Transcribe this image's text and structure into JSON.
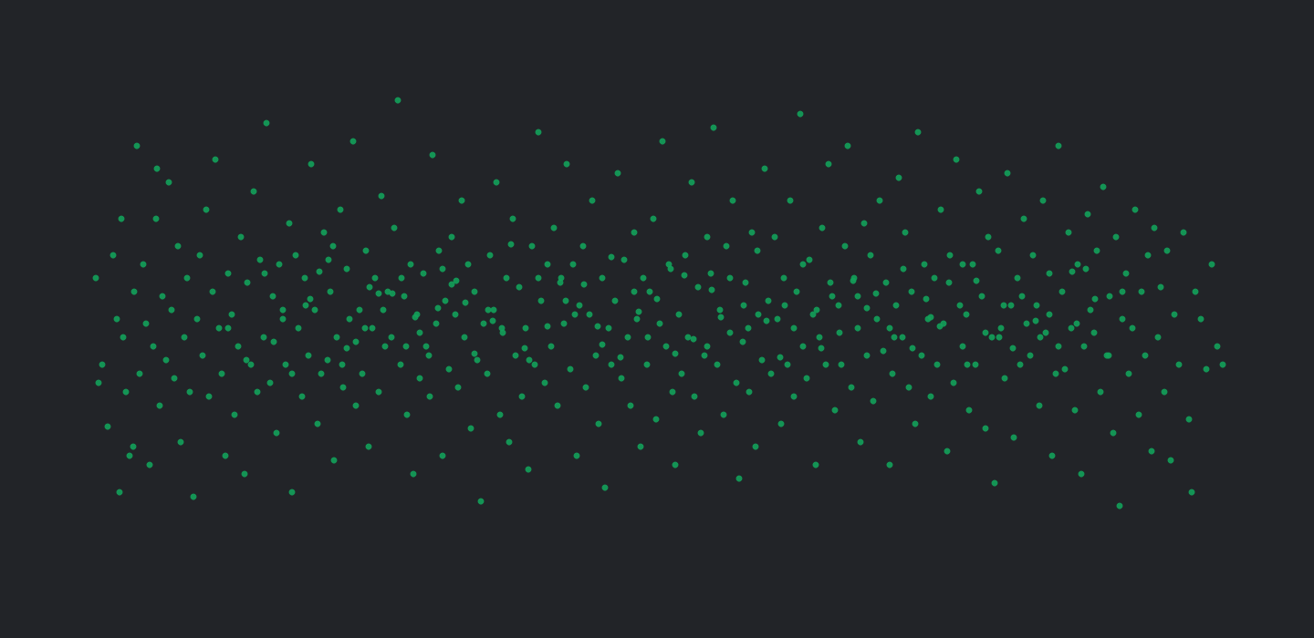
{
  "chart_data": {
    "type": "scatter",
    "color": "#13a15a",
    "marker": "circle",
    "grid": false,
    "tick_labels": false,
    "xlim": [
      0,
      1440
    ],
    "ylim": [
      0,
      700
    ],
    "x": [
      105,
      112,
      118,
      124,
      128,
      131,
      135,
      138,
      142,
      147,
      150,
      153,
      157,
      160,
      164,
      168,
      171,
      175,
      178,
      182,
      185,
      188,
      191,
      195,
      198,
      202,
      205,
      208,
      212,
      216,
      219,
      222,
      226,
      229,
      233,
      236,
      240,
      243,
      247,
      250,
      254,
      257,
      261,
      264,
      268,
      271,
      275,
      278,
      282,
      285,
      289,
      292,
      296,
      299,
      303,
      306,
      310,
      313,
      317,
      320,
      324,
      327,
      331,
      334,
      338,
      341,
      345,
      348,
      352,
      355,
      359,
      362,
      366,
      369,
      373,
      376,
      380,
      383,
      387,
      390,
      394,
      397,
      401,
      404,
      408,
      411,
      415,
      418,
      422,
      425,
      429,
      432,
      436,
      439,
      443,
      446,
      450,
      453,
      457,
      460,
      464,
      467,
      471,
      474,
      478,
      481,
      485,
      488,
      492,
      495,
      499,
      502,
      506,
      509,
      513,
      516,
      520,
      523,
      527,
      530,
      534,
      537,
      541,
      544,
      548,
      551,
      555,
      558,
      562,
      565,
      569,
      572,
      576,
      579,
      583,
      586,
      590,
      593,
      597,
      600,
      604,
      607,
      611,
      614,
      618,
      621,
      625,
      628,
      632,
      635,
      639,
      642,
      646,
      649,
      653,
      656,
      660,
      663,
      667,
      670,
      674,
      677,
      681,
      684,
      688,
      691,
      695,
      698,
      702,
      705,
      709,
      712,
      716,
      719,
      723,
      726,
      730,
      733,
      737,
      740,
      744,
      747,
      751,
      754,
      758,
      761,
      765,
      768,
      772,
      775,
      779,
      782,
      786,
      789,
      793,
      796,
      800,
      803,
      807,
      810,
      814,
      817,
      821,
      824,
      828,
      831,
      835,
      838,
      842,
      845,
      849,
      852,
      856,
      859,
      863,
      866,
      870,
      873,
      877,
      880,
      884,
      887,
      891,
      894,
      898,
      901,
      905,
      908,
      912,
      915,
      919,
      922,
      926,
      929,
      933,
      936,
      940,
      943,
      947,
      950,
      954,
      957,
      961,
      964,
      968,
      971,
      975,
      978,
      982,
      985,
      989,
      992,
      996,
      999,
      1003,
      1006,
      1010,
      1013,
      1017,
      1020,
      1024,
      1027,
      1031,
      1034,
      1038,
      1041,
      1045,
      1048,
      1052,
      1055,
      1059,
      1062,
      1066,
      1069,
      1073,
      1076,
      1080,
      1083,
      1087,
      1090,
      1094,
      1097,
      1101,
      1104,
      1108,
      1111,
      1115,
      1118,
      1122,
      1125,
      1129,
      1132,
      1136,
      1139,
      1143,
      1146,
      1150,
      1153,
      1157,
      1160,
      1164,
      1167,
      1171,
      1174,
      1178,
      1181,
      1185,
      1188,
      1192,
      1195,
      1199,
      1202,
      1206,
      1209,
      1213,
      1216,
      1220,
      1223,
      1227,
      1230,
      1234,
      1237,
      1241,
      1244,
      1248,
      1251,
      1255,
      1258,
      1262,
      1265,
      1269,
      1272,
      1276,
      1279,
      1283,
      1287,
      1292,
      1297,
      1303,
      1310,
      1316,
      1322,
      1328,
      1334,
      1340,
      108,
      133,
      146,
      172,
      1306,
      300,
      340,
      380,
      420,
      460,
      500,
      540,
      580,
      620,
      660,
      700,
      740,
      780,
      820,
      860,
      900,
      940,
      980,
      1020,
      1060,
      1100,
      1140,
      1180,
      320,
      360,
      400,
      440,
      480,
      520,
      560,
      600,
      640,
      680,
      720,
      760,
      800,
      840,
      880,
      920,
      960,
      1000,
      1040,
      1080,
      1120,
      1160,
      1200,
      250,
      270,
      290,
      310,
      350,
      390,
      430,
      470,
      510,
      550,
      590,
      630,
      670,
      710,
      750,
      790,
      830,
      870,
      910,
      950,
      990,
      1030,
      1070,
      1110,
      1150,
      1190,
      1230,
      335,
      375,
      415,
      455,
      495,
      535,
      575,
      615,
      655,
      695,
      735,
      775,
      815,
      855,
      895,
      935,
      975,
      1015,
      1055,
      1095,
      1135,
      1175,
      1215,
      365,
      405,
      445,
      485
    ],
    "values": [
      395,
      300,
      232,
      420,
      350,
      160,
      330,
      270,
      200,
      380,
      540,
      290,
      410,
      345,
      190,
      320,
      460,
      255,
      375,
      305,
      500,
      360,
      285,
      430,
      215,
      330,
      395,
      270,
      155,
      350,
      420,
      310,
      470,
      265,
      380,
      525,
      340,
      290,
      200,
      400,
      355,
      245,
      320,
      440,
      180,
      390,
      300,
      490,
      270,
      415,
      330,
      565,
      280,
      375,
      225,
      410,
      350,
      300,
      455,
      160,
      420,
      340,
      265,
      395,
      310,
      520,
      360,
      235,
      290,
      445,
      305,
      380,
      195,
      330,
      470,
      275,
      405,
      350,
      545,
      255,
      360,
      290,
      425,
      210,
      340,
      395,
      270,
      485,
      320,
      380,
      330,
      450,
      590,
      300,
      375,
      245,
      410,
      180,
      355,
      285,
      400,
      320,
      265,
      530,
      345,
      425,
      200,
      370,
      295,
      440,
      355,
      275,
      480,
      330,
      410,
      230,
      380,
      305,
      150,
      345,
      290,
      420,
      360,
      500,
      245,
      335,
      395,
      215,
      460,
      310,
      385,
      265,
      340,
      185,
      430,
      300,
      555,
      370,
      280,
      410,
      320,
      450,
      255,
      390,
      345,
      520,
      295,
      410,
      200,
      365,
      430,
      275,
      355,
      480,
      310,
      235,
      395,
      165,
      340,
      300,
      370,
      510,
      285,
      415,
      330,
      255,
      445,
      350,
      210,
      395,
      300,
      380,
      460,
      240,
      345,
      545,
      320,
      410,
      270,
      190,
      355,
      290,
      420,
      330,
      500,
      265,
      385,
      225,
      310,
      440,
      400,
      560,
      300,
      360,
      245,
      430,
      335,
      480,
      280,
      175,
      325,
      390,
      270,
      445,
      210,
      355,
      305,
      515,
      370,
      290,
      440,
      350,
      235,
      395,
      300,
      480,
      265,
      380,
      575,
      320,
      285,
      415,
      355,
      190,
      330,
      450,
      300,
      520,
      375,
      250,
      365,
      300,
      430,
      540,
      275,
      395,
      340,
      215,
      455,
      310,
      420,
      260,
      350,
      480,
      315,
      390,
      190,
      290,
      365,
      505,
      330,
      445,
      275,
      380,
      235,
      555,
      310,
      410,
      350,
      265,
      395,
      300,
      470,
      345,
      205,
      420,
      280,
      525,
      365,
      320,
      355,
      250,
      410,
      300,
      490,
      375,
      230,
      440,
      330,
      170,
      425,
      340,
      285,
      510,
      365,
      220,
      395,
      300,
      460,
      345,
      310,
      420,
      365,
      255,
      480,
      335,
      400,
      200,
      290,
      540,
      380,
      295,
      445,
      340,
      250,
      410,
      180,
      320,
      465,
      360,
      335,
      425,
      270,
      495,
      310,
      375,
      225,
      440,
      145,
      350,
      400,
      290,
      340,
      470,
      245,
      380,
      310,
      420,
      205,
      450,
      330,
      385,
      270,
      425,
      195,
      355,
      300,
      445,
      240,
      380,
      350,
      295,
      410,
      320,
      300,
      280,
      460,
      210,
      515,
      160,
      325,
      372,
      318,
      360,
      335,
      392,
      348,
      305,
      370,
      322,
      358,
      312,
      382,
      340,
      365,
      318,
      375,
      330,
      352,
      300,
      365,
      330,
      345,
      290,
      415,
      340,
      395,
      362,
      312,
      432,
      342,
      388,
      308,
      372,
      328,
      395,
      348,
      410,
      335,
      378,
      318,
      390,
      335,
      375,
      320,
      372,
      340,
      305,
      400,
      360,
      402,
      325,
      378,
      310,
      368,
      340,
      395,
      355,
      418,
      330,
      398,
      352,
      425,
      340,
      390,
      362,
      405,
      342,
      392,
      318,
      355,
      405,
      380,
      365,
      300,
      378,
      352,
      388,
      360,
      318,
      395,
      342,
      380,
      405,
      320,
      365,
      308,
      360,
      392,
      340,
      372,
      410,
      330,
      348,
      402,
      310,
      430,
      385,
      320,
      405
    ]
  }
}
